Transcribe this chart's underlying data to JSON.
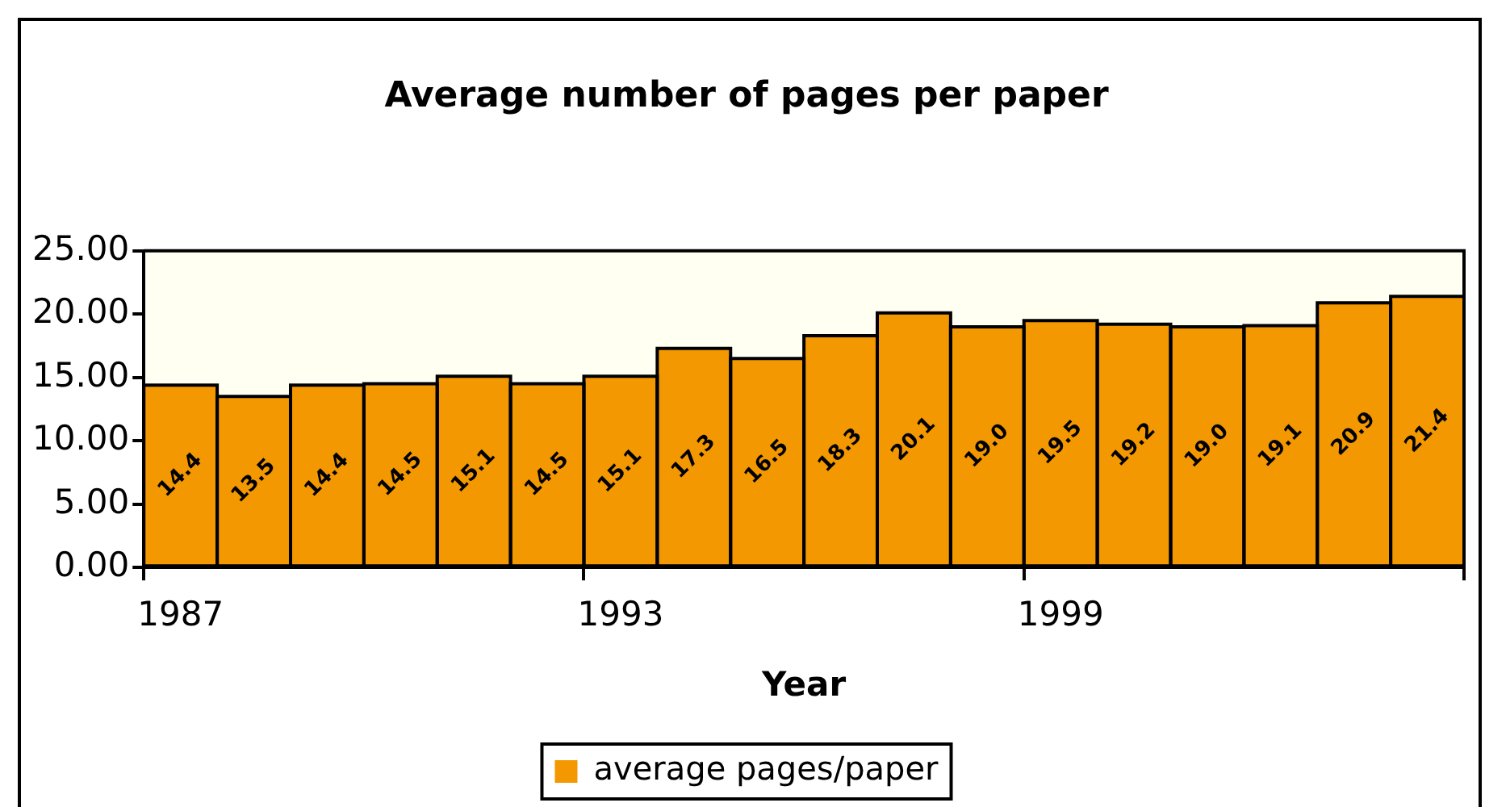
{
  "chart_data": {
    "type": "bar",
    "title": "Average number of pages per paper",
    "xlabel": "Year",
    "categories": [
      "1987",
      null,
      null,
      null,
      null,
      null,
      "1993",
      null,
      null,
      null,
      null,
      null,
      "1999",
      null,
      null,
      null,
      null,
      null
    ],
    "series": [
      {
        "name": "average pages/paper",
        "color": "#f39800",
        "values": [
          14.4,
          13.5,
          14.4,
          14.5,
          15.1,
          14.5,
          15.1,
          17.3,
          16.5,
          18.3,
          20.1,
          19.0,
          19.5,
          19.2,
          19.0,
          19.1,
          20.9,
          21.4
        ],
        "value_labels": [
          "14.4",
          "13.5",
          "14.4",
          "14.5",
          "15.1",
          "14.5",
          "15.1",
          "17.3",
          "16.5",
          "18.3",
          "20.1",
          "19.0",
          "19.5",
          "19.2",
          "19.0",
          "19.1",
          "20.9",
          "21.4"
        ]
      }
    ],
    "ylim": [
      0,
      25
    ],
    "yticks": [
      {
        "value": 0,
        "label": "0.00"
      },
      {
        "value": 5,
        "label": "5.00"
      },
      {
        "value": 10,
        "label": "10.00"
      },
      {
        "value": 15,
        "label": "15.00"
      },
      {
        "value": 20,
        "label": "20.00"
      },
      {
        "value": 25,
        "label": "25.00"
      }
    ],
    "grid": false,
    "legend": "bottom"
  }
}
